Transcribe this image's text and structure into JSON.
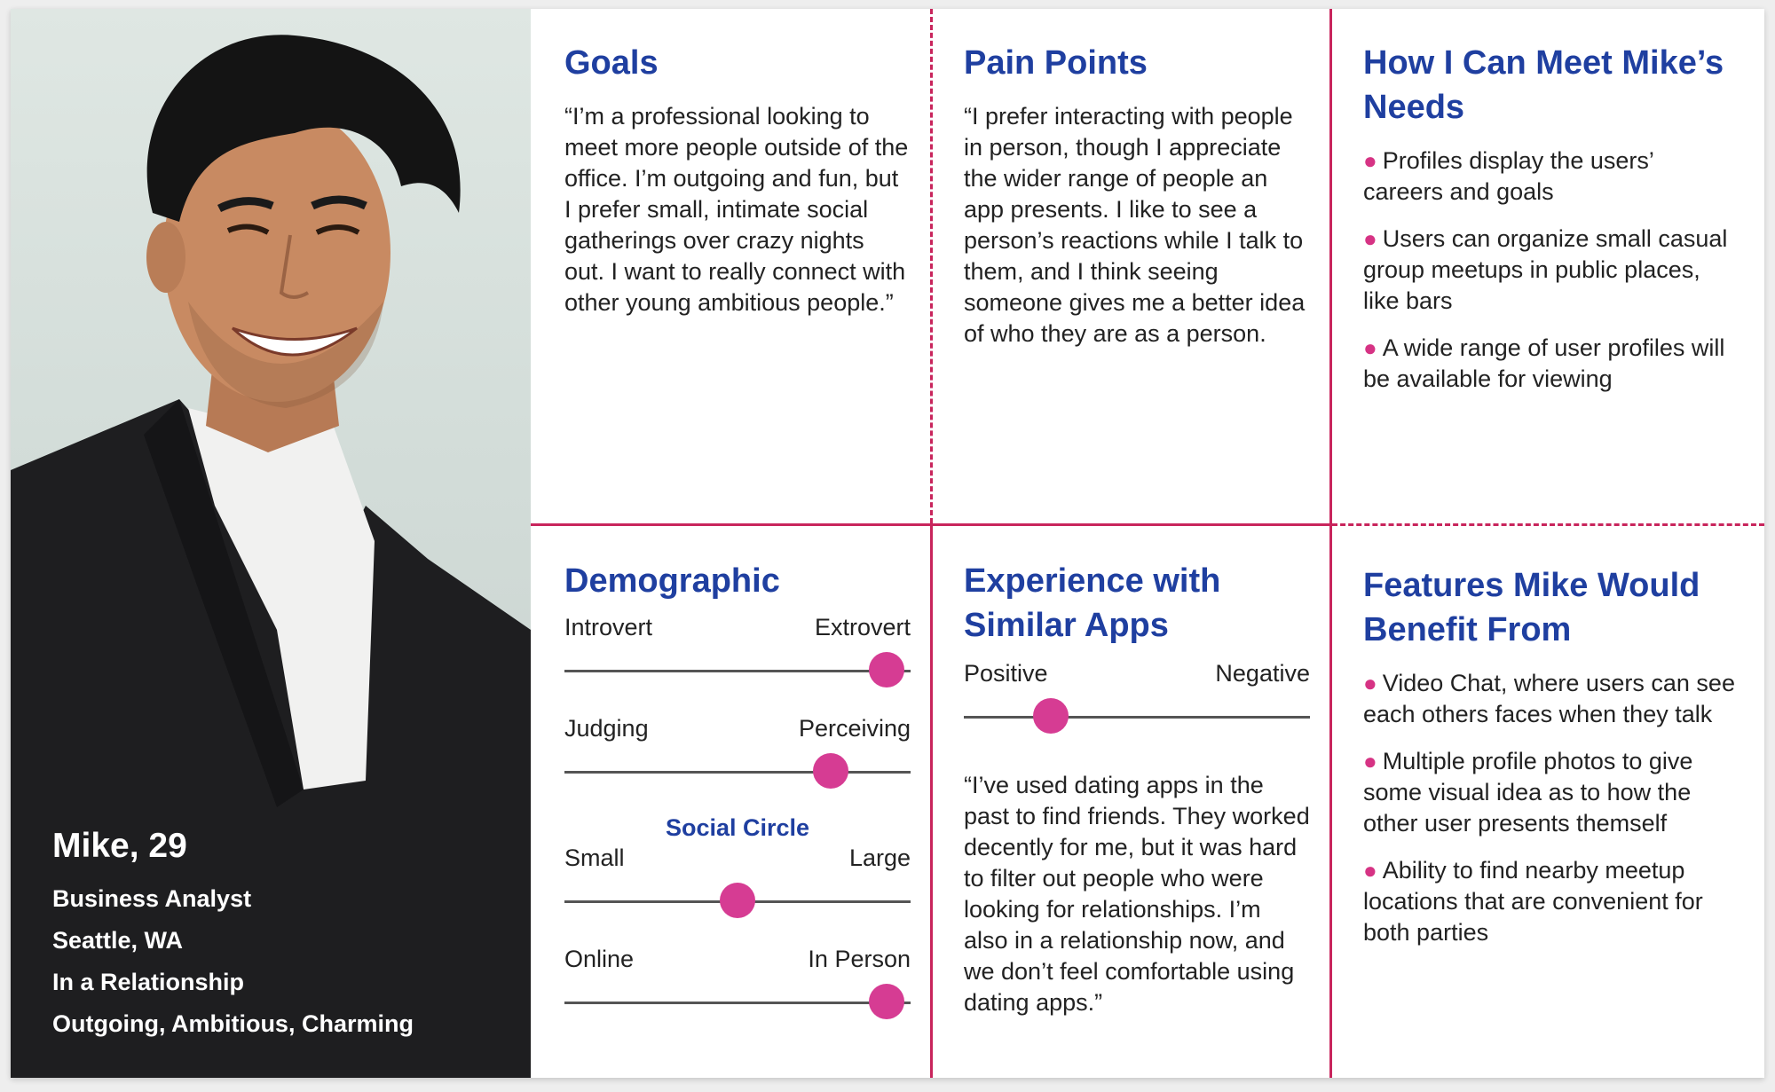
{
  "persona": {
    "name": "Mike, 29",
    "occupation": "Business Analyst",
    "location": "Seattle, WA",
    "relationship": "In a Relationship",
    "traits": "Outgoing, Ambitious, Charming"
  },
  "goals": {
    "title": "Goals",
    "text": "“I’m a professional looking to meet more people outside of the office. I’m outgoing and fun, but I prefer small, intimate social gatherings over crazy nights out. I want to really connect with other young ambitious people.”"
  },
  "pain_points": {
    "title": "Pain Points",
    "text": "“I prefer interacting with people in person, though I appreciate the wider range of people an app presents. I like to see a person’s reactions while I talk to them, and I think seeing someone gives me a better idea of who they are as a person."
  },
  "needs": {
    "title": "How I Can Meet Mike’s Needs",
    "items": [
      "Profiles display the users’ careers and goals",
      "Users can organize small casual group meetups in public places, like bars",
      "A wide range of user profiles will be available for viewing"
    ]
  },
  "demographic": {
    "title": "Demographic",
    "social_circle_label": "Social Circle",
    "scales": [
      {
        "left": "Introvert",
        "right": "Extrovert",
        "value": 0.93
      },
      {
        "left": "Judging",
        "right": "Perceiving",
        "value": 0.77
      },
      {
        "left": "Small",
        "right": "Large",
        "value": 0.5
      },
      {
        "left": "Online",
        "right": "In Person",
        "value": 0.93
      }
    ]
  },
  "experience": {
    "title": "Experience with Similar Apps",
    "scale": {
      "left": "Positive",
      "right": "Negative",
      "value": 0.25
    },
    "text": "“I’ve used dating apps in the past to find friends. They worked decently for me, but it was hard to filter out people who were looking for relationships. I’m also in a relationship now, and we don’t feel comfortable using dating apps.”"
  },
  "features": {
    "title": "Features Mike Would Benefit From",
    "items": [
      "Video Chat, where users can see each others faces when they talk",
      "Multiple profile photos to give some visual idea as to how the other user presents themself",
      "Ability to find nearby meetup locations that are convenient for both parties"
    ]
  },
  "colors": {
    "accent": "#c8255c",
    "heading": "#1f3fa0",
    "knob": "#d63c93"
  }
}
